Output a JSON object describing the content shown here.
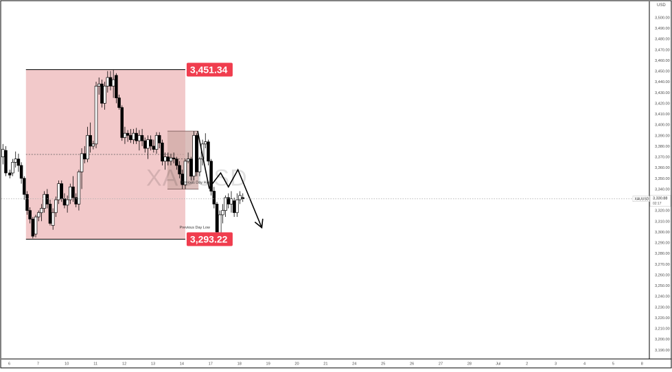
{
  "chart_data": {
    "type": "candlestick",
    "symbol": "XAUUSD",
    "currency": "USD",
    "ylim": [
      3183,
      3507
    ],
    "y_ticks": [
      "3,190.00",
      "3,200.00",
      "3,210.00",
      "3,220.00",
      "3,230.00",
      "3,240.00",
      "3,250.00",
      "3,260.00",
      "3,270.00",
      "3,280.00",
      "3,290.00",
      "3,300.00",
      "3,310.00",
      "3,320.00",
      "3,330.00",
      "3,340.00",
      "3,350.00",
      "3,360.00",
      "3,370.00",
      "3,380.00",
      "3,390.00",
      "3,400.00",
      "3,410.00",
      "3,420.00",
      "3,430.00",
      "3,440.00",
      "3,450.00",
      "3,460.00",
      "3,470.00",
      "3,480.00",
      "3,490.00",
      "3,500.00"
    ],
    "x_ticks": [
      {
        "label": "6",
        "t": 0.0
      },
      {
        "label": "7",
        "t": 10.0
      },
      {
        "label": "10",
        "t": 20.0
      },
      {
        "label": "11",
        "t": 30.0
      },
      {
        "label": "12",
        "t": 40.0
      },
      {
        "label": "13",
        "t": 50.0
      },
      {
        "label": "14",
        "t": 60.0
      },
      {
        "label": "17",
        "t": 70.0
      },
      {
        "label": "18",
        "t": 80.0
      },
      {
        "label": "19",
        "t": 90.0
      },
      {
        "label": "20",
        "t": 100.0
      },
      {
        "label": "21",
        "t": 110.0
      },
      {
        "label": "24",
        "t": 120.0
      },
      {
        "label": "25",
        "t": 130.0
      },
      {
        "label": "26",
        "t": 140.0
      },
      {
        "label": "27",
        "t": 150.0
      },
      {
        "label": "28",
        "t": 160.0
      },
      {
        "label": "Jul",
        "t": 170.0
      },
      {
        "label": "2",
        "t": 180.0
      },
      {
        "label": "3",
        "t": 190.0
      },
      {
        "label": "4",
        "t": 200.0
      },
      {
        "label": "5",
        "t": 210.0
      },
      {
        "label": "8",
        "t": 220.0
      }
    ],
    "candles": [
      {
        "t": -2.2,
        "o": 3370,
        "h": 3382,
        "l": 3363,
        "c": 3377
      },
      {
        "t": -1.2,
        "o": 3376,
        "h": 3380,
        "l": 3352,
        "c": 3355
      },
      {
        "t": 0.2,
        "o": 3355,
        "h": 3358,
        "l": 3350,
        "c": 3353
      },
      {
        "t": 1.2,
        "o": 3355,
        "h": 3368,
        "l": 3352,
        "c": 3365
      },
      {
        "t": 2.2,
        "o": 3365,
        "h": 3375,
        "l": 3360,
        "c": 3368
      },
      {
        "t": 3.2,
        "o": 3368,
        "h": 3373,
        "l": 3356,
        "c": 3362
      },
      {
        "t": 4.2,
        "o": 3362,
        "h": 3365,
        "l": 3345,
        "c": 3350
      },
      {
        "t": 5.2,
        "o": 3350,
        "h": 3352,
        "l": 3330,
        "c": 3335
      },
      {
        "t": 6.2,
        "o": 3335,
        "h": 3338,
        "l": 3316,
        "c": 3320
      },
      {
        "t": 7.2,
        "o": 3320,
        "h": 3323,
        "l": 3308,
        "c": 3312
      },
      {
        "t": 8.2,
        "o": 3312,
        "h": 3314,
        "l": 3294,
        "c": 3296
      },
      {
        "t": 9.2,
        "o": 3298,
        "h": 3316,
        "l": 3295,
        "c": 3314
      },
      {
        "t": 10.2,
        "o": 3314,
        "h": 3320,
        "l": 3310,
        "c": 3318
      },
      {
        "t": 11.2,
        "o": 3318,
        "h": 3326,
        "l": 3310,
        "c": 3322
      },
      {
        "t": 12.2,
        "o": 3322,
        "h": 3338,
        "l": 3318,
        "c": 3335
      },
      {
        "t": 13.2,
        "o": 3335,
        "h": 3340,
        "l": 3322,
        "c": 3326
      },
      {
        "t": 14.2,
        "o": 3326,
        "h": 3330,
        "l": 3306,
        "c": 3308
      },
      {
        "t": 15.2,
        "o": 3306,
        "h": 3322,
        "l": 3302,
        "c": 3318
      },
      {
        "t": 16.2,
        "o": 3318,
        "h": 3333,
        "l": 3314,
        "c": 3330
      },
      {
        "t": 17.2,
        "o": 3330,
        "h": 3348,
        "l": 3326,
        "c": 3345
      },
      {
        "t": 18.2,
        "o": 3345,
        "h": 3348,
        "l": 3328,
        "c": 3331
      },
      {
        "t": 19.2,
        "o": 3331,
        "h": 3336,
        "l": 3322,
        "c": 3325
      },
      {
        "t": 20.2,
        "o": 3325,
        "h": 3334,
        "l": 3318,
        "c": 3330
      },
      {
        "t": 21.2,
        "o": 3330,
        "h": 3345,
        "l": 3326,
        "c": 3342
      },
      {
        "t": 22.2,
        "o": 3342,
        "h": 3352,
        "l": 3328,
        "c": 3332
      },
      {
        "t": 23.2,
        "o": 3332,
        "h": 3336,
        "l": 3323,
        "c": 3326
      },
      {
        "t": 24.2,
        "o": 3326,
        "h": 3358,
        "l": 3320,
        "c": 3356
      },
      {
        "t": 25.2,
        "o": 3356,
        "h": 3378,
        "l": 3340,
        "c": 3373
      },
      {
        "t": 26.2,
        "o": 3373,
        "h": 3380,
        "l": 3364,
        "c": 3368
      },
      {
        "t": 27.2,
        "o": 3368,
        "h": 3398,
        "l": 3365,
        "c": 3390
      },
      {
        "t": 28.2,
        "o": 3390,
        "h": 3402,
        "l": 3374,
        "c": 3380
      },
      {
        "t": 29.2,
        "o": 3380,
        "h": 3385,
        "l": 3377,
        "c": 3382
      },
      {
        "t": 30.2,
        "o": 3382,
        "h": 3440,
        "l": 3378,
        "c": 3436
      },
      {
        "t": 31.2,
        "o": 3436,
        "h": 3444,
        "l": 3428,
        "c": 3438
      },
      {
        "t": 32.2,
        "o": 3438,
        "h": 3442,
        "l": 3416,
        "c": 3420
      },
      {
        "t": 33.2,
        "o": 3420,
        "h": 3440,
        "l": 3414,
        "c": 3436
      },
      {
        "t": 34.2,
        "o": 3436,
        "h": 3450,
        "l": 3430,
        "c": 3444
      },
      {
        "t": 35.2,
        "o": 3444,
        "h": 3450,
        "l": 3432,
        "c": 3436
      },
      {
        "t": 36.2,
        "o": 3436,
        "h": 3451.34,
        "l": 3425,
        "c": 3442
      },
      {
        "t": 37.2,
        "o": 3446,
        "h": 3448,
        "l": 3420,
        "c": 3425
      },
      {
        "t": 38.2,
        "o": 3425,
        "h": 3428,
        "l": 3414,
        "c": 3416
      },
      {
        "t": 39.2,
        "o": 3416,
        "h": 3418,
        "l": 3385,
        "c": 3388
      },
      {
        "t": 40.2,
        "o": 3388,
        "h": 3398,
        "l": 3382,
        "c": 3392
      },
      {
        "t": 41.2,
        "o": 3392,
        "h": 3395,
        "l": 3384,
        "c": 3390
      },
      {
        "t": 42.2,
        "o": 3390,
        "h": 3396,
        "l": 3383,
        "c": 3386
      },
      {
        "t": 43.2,
        "o": 3386,
        "h": 3396,
        "l": 3382,
        "c": 3392
      },
      {
        "t": 44.2,
        "o": 3392,
        "h": 3397,
        "l": 3382,
        "c": 3385
      },
      {
        "t": 45.2,
        "o": 3385,
        "h": 3395,
        "l": 3376,
        "c": 3390
      },
      {
        "t": 46.2,
        "o": 3390,
        "h": 3396,
        "l": 3380,
        "c": 3385
      },
      {
        "t": 47.2,
        "o": 3385,
        "h": 3388,
        "l": 3374,
        "c": 3378
      },
      {
        "t": 48.2,
        "o": 3378,
        "h": 3390,
        "l": 3368,
        "c": 3386
      },
      {
        "t": 49.2,
        "o": 3386,
        "h": 3390,
        "l": 3376,
        "c": 3380
      },
      {
        "t": 50.2,
        "o": 3380,
        "h": 3386,
        "l": 3374,
        "c": 3377
      },
      {
        "t": 51.2,
        "o": 3377,
        "h": 3393,
        "l": 3373,
        "c": 3390
      },
      {
        "t": 52.2,
        "o": 3390,
        "h": 3393,
        "l": 3378,
        "c": 3383
      },
      {
        "t": 53.2,
        "o": 3383,
        "h": 3386,
        "l": 3362,
        "c": 3366
      },
      {
        "t": 54.2,
        "o": 3366,
        "h": 3374,
        "l": 3358,
        "c": 3370
      },
      {
        "t": 55.2,
        "o": 3370,
        "h": 3374,
        "l": 3362,
        "c": 3366
      },
      {
        "t": 56.2,
        "o": 3366,
        "h": 3373,
        "l": 3362,
        "c": 3369
      },
      {
        "t": 57.2,
        "o": 3369,
        "h": 3374,
        "l": 3364,
        "c": 3368
      },
      {
        "t": 58.2,
        "o": 3368,
        "h": 3370,
        "l": 3358,
        "c": 3362
      },
      {
        "t": 59.2,
        "o": 3362,
        "h": 3366,
        "l": 3350,
        "c": 3354
      },
      {
        "t": 60.2,
        "o": 3354,
        "h": 3358,
        "l": 3340,
        "c": 3344
      },
      {
        "t": 61.2,
        "o": 3344,
        "h": 3368,
        "l": 3340,
        "c": 3366
      },
      {
        "t": 62.2,
        "o": 3366,
        "h": 3374,
        "l": 3364,
        "c": 3368
      },
      {
        "t": 63.2,
        "o": 3368,
        "h": 3370,
        "l": 3348,
        "c": 3352
      },
      {
        "t": 64.2,
        "o": 3352,
        "h": 3394,
        "l": 3348,
        "c": 3390
      },
      {
        "t": 65.2,
        "o": 3390,
        "h": 3392,
        "l": 3352,
        "c": 3356
      },
      {
        "t": 66.2,
        "o": 3356,
        "h": 3370,
        "l": 3352,
        "c": 3368
      },
      {
        "t": 67.2,
        "o": 3368,
        "h": 3386,
        "l": 3362,
        "c": 3382
      },
      {
        "t": 68.2,
        "o": 3382,
        "h": 3392,
        "l": 3378,
        "c": 3384
      },
      {
        "t": 69.2,
        "o": 3384,
        "h": 3386,
        "l": 3362,
        "c": 3366
      },
      {
        "t": 70.2,
        "o": 3366,
        "h": 3368,
        "l": 3334,
        "c": 3338
      },
      {
        "t": 71.2,
        "o": 3338,
        "h": 3342,
        "l": 3322,
        "c": 3326
      },
      {
        "t": 72.2,
        "o": 3326,
        "h": 3328,
        "l": 3296,
        "c": 3300
      },
      {
        "t": 73.2,
        "o": 3298,
        "h": 3320,
        "l": 3296,
        "c": 3316
      },
      {
        "t": 74.2,
        "o": 3316,
        "h": 3326,
        "l": 3308,
        "c": 3320
      },
      {
        "t": 75.2,
        "o": 3320,
        "h": 3334,
        "l": 3314,
        "c": 3332
      },
      {
        "t": 76.2,
        "o": 3332,
        "h": 3336,
        "l": 3322,
        "c": 3326
      },
      {
        "t": 77.2,
        "o": 3326,
        "h": 3338,
        "l": 3318,
        "c": 3331
      },
      {
        "t": 78.2,
        "o": 3329,
        "h": 3332,
        "l": 3314,
        "c": 3318
      },
      {
        "t": 79.2,
        "o": 3318,
        "h": 3336,
        "l": 3314,
        "c": 3330
      },
      {
        "t": 80.2,
        "o": 3330,
        "h": 3338,
        "l": 3326,
        "c": 3334
      },
      {
        "t": 81.2,
        "o": 3332,
        "h": 3336,
        "l": 3328,
        "c": 3331
      }
    ],
    "zones": {
      "range_high": 3451.34,
      "range_low": 3293.22,
      "range_mid": 3372.28,
      "range_t_start": 5.8,
      "range_t_end": 61.2,
      "inner_top": 3394,
      "inner_bottom": 3340,
      "inner_mid": 3368,
      "inner_t_start": 55.0,
      "inner_t_end": 65.8
    },
    "annotations": {
      "high_label": "3,451.34",
      "low_label": "3,293.22",
      "prev_day_high": "Previous Day High",
      "prev_day_low": "Previous Day Low",
      "watermark": "XAUUSD"
    },
    "last_price": {
      "value": 3330.88,
      "label": "3,330.88",
      "symbol_tag": "XAUUSD",
      "countdown": "02:17"
    },
    "projection": [
      {
        "t": 65.5,
        "v": 3394
      },
      {
        "t": 69.5,
        "v": 3341
      },
      {
        "t": 73.5,
        "v": 3355
      },
      {
        "t": 76.2,
        "v": 3342
      },
      {
        "t": 79.5,
        "v": 3358
      },
      {
        "t": 87.8,
        "v": 3304
      }
    ],
    "colors": {
      "range_fill": "#f2c9ca",
      "inner_fill": "#cfa9a6",
      "label_red": "#f03d4e",
      "candle_up": "#ffffff",
      "candle_down": "#000000",
      "axis_text": "#4a4a4a",
      "axis_line": "#000000"
    }
  }
}
